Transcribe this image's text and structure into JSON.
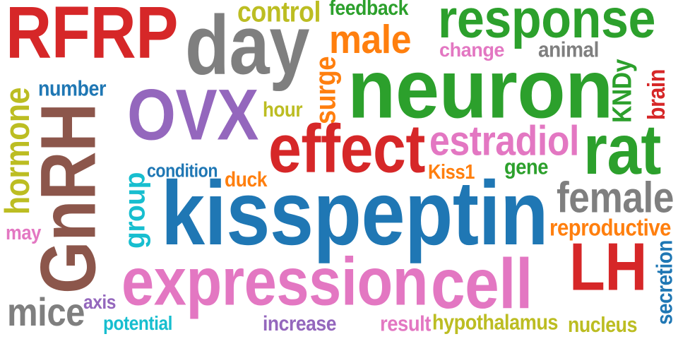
{
  "palette": {
    "red": "#d62728",
    "gray": "#7f7f7f",
    "purple": "#9467bd",
    "blue": "#1f77b4",
    "green": "#2ca02c",
    "olive": "#bcbd22",
    "orange": "#ff7f0e",
    "pink": "#e377c2",
    "brown": "#8c564b",
    "cyan": "#17becf"
  },
  "words": [
    {
      "text": "RFRP",
      "color": "#d62728"
    },
    {
      "text": "day",
      "color": "#7f7f7f"
    },
    {
      "text": "control",
      "color": "#bcbd22"
    },
    {
      "text": "feedback",
      "color": "#2ca02c"
    },
    {
      "text": "response",
      "color": "#2ca02c"
    },
    {
      "text": "male",
      "color": "#ff7f0e"
    },
    {
      "text": "change",
      "color": "#e377c2"
    },
    {
      "text": "animal",
      "color": "#7f7f7f"
    },
    {
      "text": "neuron",
      "color": "#2ca02c"
    },
    {
      "text": "surge",
      "color": "#ff7f0e"
    },
    {
      "text": "KNDy",
      "color": "#2ca02c"
    },
    {
      "text": "brain",
      "color": "#d62728"
    },
    {
      "text": "number",
      "color": "#1f77b4"
    },
    {
      "text": "hormone",
      "color": "#bcbd22"
    },
    {
      "text": "GnRH",
      "color": "#8c564b"
    },
    {
      "text": "OVX",
      "color": "#9467bd"
    },
    {
      "text": "hour",
      "color": "#bcbd22"
    },
    {
      "text": "effect",
      "color": "#d62728"
    },
    {
      "text": "estradiol",
      "color": "#e377c2"
    },
    {
      "text": "rat",
      "color": "#2ca02c"
    },
    {
      "text": "condition",
      "color": "#1f77b4"
    },
    {
      "text": "Kiss1",
      "color": "#ff7f0e"
    },
    {
      "text": "gene",
      "color": "#2ca02c"
    },
    {
      "text": "group",
      "color": "#17becf"
    },
    {
      "text": "duck",
      "color": "#ff7f0e"
    },
    {
      "text": "kisspeptin",
      "color": "#1f77b4"
    },
    {
      "text": "female",
      "color": "#7f7f7f"
    },
    {
      "text": "reproductive",
      "color": "#ff7f0e"
    },
    {
      "text": "may",
      "color": "#e377c2"
    },
    {
      "text": "LH",
      "color": "#d62728"
    },
    {
      "text": "expression",
      "color": "#e377c2"
    },
    {
      "text": "cell",
      "color": "#e377c2"
    },
    {
      "text": "secretion",
      "color": "#1f77b4"
    },
    {
      "text": "mice",
      "color": "#7f7f7f"
    },
    {
      "text": "axis",
      "color": "#9467bd"
    },
    {
      "text": "potential",
      "color": "#17becf"
    },
    {
      "text": "increase",
      "color": "#9467bd"
    },
    {
      "text": "result",
      "color": "#e377c2"
    },
    {
      "text": "hypothalamus",
      "color": "#bcbd22"
    },
    {
      "text": "nucleus",
      "color": "#bcbd22"
    }
  ]
}
